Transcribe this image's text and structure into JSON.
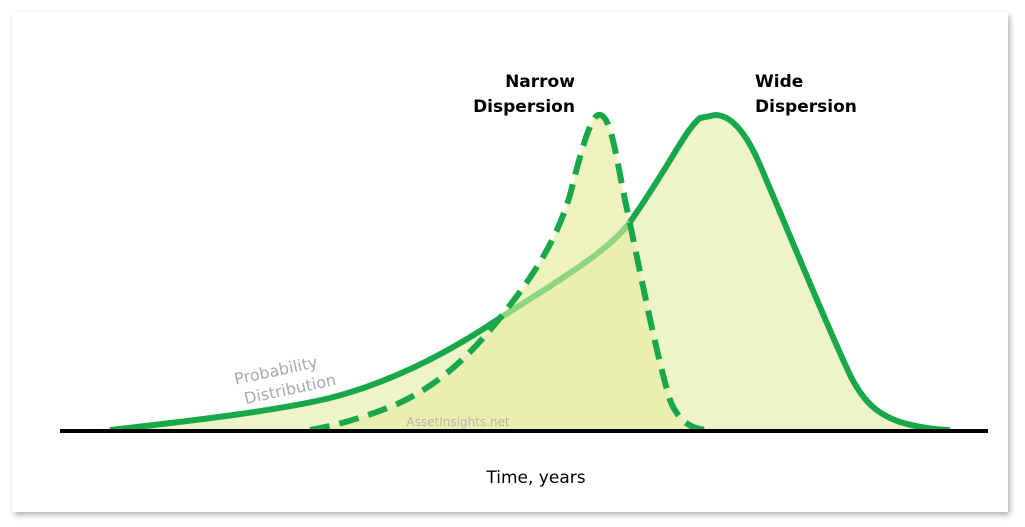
{
  "labels": {
    "narrow": [
      "Narrow",
      "Dispersion"
    ],
    "wide": [
      "Wide",
      "Dispersion"
    ],
    "probability": [
      "Probability",
      "Distribution"
    ],
    "watermark": "AssetInsights.net",
    "x_axis": "Time, years"
  }
}
